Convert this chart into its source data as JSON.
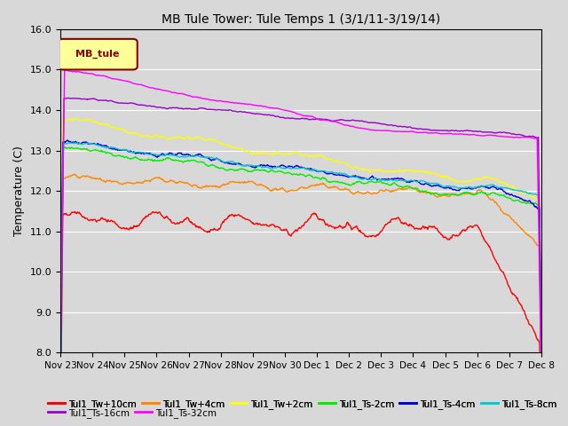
{
  "title": "MB Tule Tower: Tule Temps 1 (3/1/11-3/19/14)",
  "ylabel": "Temperature (C)",
  "ylim": [
    8.0,
    16.0
  ],
  "yticks": [
    8.0,
    9.0,
    10.0,
    11.0,
    12.0,
    13.0,
    14.0,
    15.0,
    16.0
  ],
  "background_color": "#d8d8d8",
  "plot_bg_color": "#d8d8d8",
  "legend_label": "MB_tule",
  "series": [
    {
      "label": "Tul1_Tw+10cm",
      "color": "#ff0000"
    },
    {
      "label": "Tul1_Tw+4cm",
      "color": "#ff8800"
    },
    {
      "label": "Tul1_Tw+2cm",
      "color": "#ffff00"
    },
    {
      "label": "Tul1_Ts-2cm",
      "color": "#00ee00"
    },
    {
      "label": "Tul1_Ts-4cm",
      "color": "#0000dd"
    },
    {
      "label": "Tul1_Ts-8cm",
      "color": "#00cccc"
    },
    {
      "label": "Tul1_Ts-16cm",
      "color": "#9900cc"
    },
    {
      "label": "Tul1_Ts-32cm",
      "color": "#ff00ff"
    }
  ],
  "xticklabels": [
    "Nov 23",
    "Nov 24",
    "Nov 25",
    "Nov 26",
    "Nov 27",
    "Nov 28",
    "Nov 29",
    "Nov 30",
    "Dec 1",
    "Dec 2",
    "Dec 3",
    "Dec 4",
    "Dec 5",
    "Dec 6",
    "Dec 7",
    "Dec 8"
  ],
  "legend_ncol": 6,
  "legend_row2": [
    "Tul1_Ts-16cm",
    "Tul1_Ts-32cm"
  ]
}
